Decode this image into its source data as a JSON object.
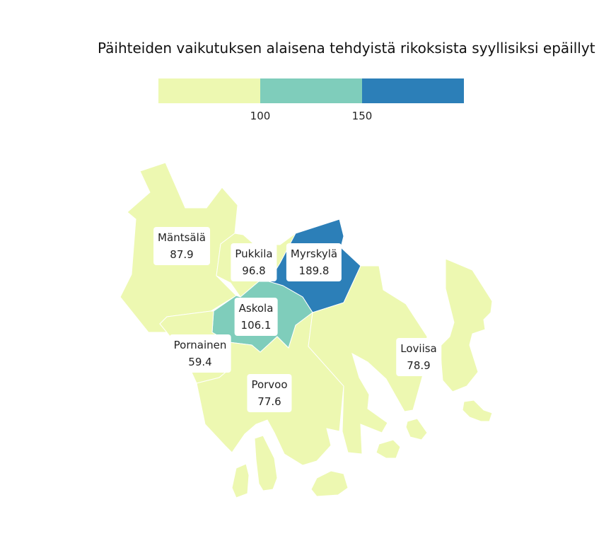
{
  "title": "Päihteiden vaikutuksen alaisena tehdyistä rikoksista syyllisiksi epäillyt",
  "legend": {
    "colors": [
      "#edf8b1",
      "#7fcdbb",
      "#2c7fb8"
    ],
    "ticks": [
      "100",
      "150"
    ]
  },
  "regions": [
    {
      "name": "Mäntsälä",
      "value": "87.9",
      "color": "#edf8b1"
    },
    {
      "name": "Pukkila",
      "value": "96.8",
      "color": "#edf8b1"
    },
    {
      "name": "Myrskylä",
      "value": "189.8",
      "color": "#2c7fb8"
    },
    {
      "name": "Askola",
      "value": "106.1",
      "color": "#7fcdbb"
    },
    {
      "name": "Pornainen",
      "value": "59.4",
      "color": "#edf8b1"
    },
    {
      "name": "Porvoo",
      "value": "77.6",
      "color": "#edf8b1"
    },
    {
      "name": "Loviisa",
      "value": "78.9",
      "color": "#edf8b1"
    }
  ]
}
